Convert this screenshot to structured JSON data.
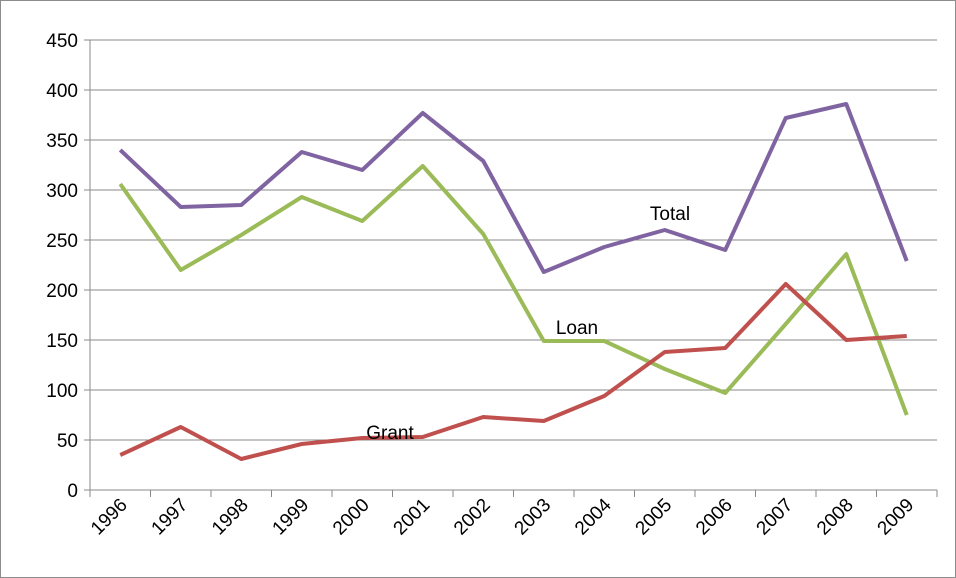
{
  "chart_data": {
    "type": "line",
    "categories": [
      "1996",
      "1997",
      "1998",
      "1999",
      "2000",
      "2001",
      "2002",
      "2003",
      "2004",
      "2005",
      "2006",
      "2007",
      "2008",
      "2009"
    ],
    "series": [
      {
        "name": "Total",
        "color": "#8064a2",
        "values": [
          340,
          283,
          285,
          338,
          320,
          377,
          329,
          218,
          243,
          260,
          240,
          372,
          386,
          229
        ]
      },
      {
        "name": "Loan",
        "color": "#9bbb59",
        "values": [
          306,
          220,
          255,
          293,
          269,
          324,
          256,
          149,
          149,
          121,
          97,
          166,
          236,
          75
        ]
      },
      {
        "name": "Grant",
        "color": "#c0504d",
        "values": [
          35,
          63,
          31,
          46,
          52,
          53,
          73,
          69,
          94,
          138,
          142,
          206,
          150,
          154
        ]
      }
    ],
    "ylim": [
      0,
      450
    ],
    "yticks": [
      0,
      50,
      100,
      150,
      200,
      250,
      300,
      350,
      400,
      450
    ],
    "grid": true
  }
}
